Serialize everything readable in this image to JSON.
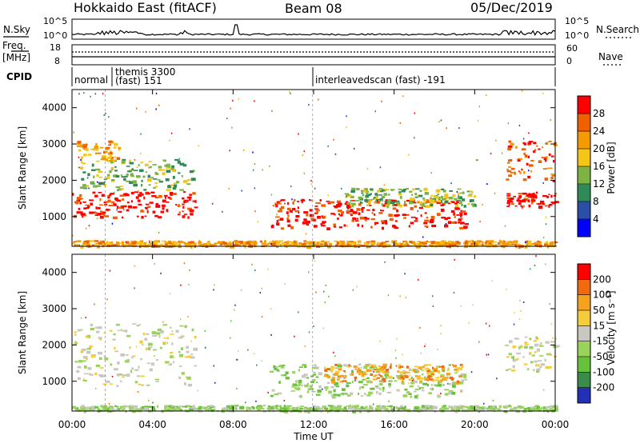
{
  "header": {
    "title": "Hokkaido East (fitACF)",
    "beam": "Beam 08",
    "date": "05/Dec/2019"
  },
  "colors": {
    "power": [
      "#0000ff",
      "#2b4fa8",
      "#2e8b57",
      "#7cb342",
      "#f5c518",
      "#f59a00",
      "#f06000",
      "#ff0000"
    ],
    "velocity": [
      "#2230b8",
      "#3a8c4a",
      "#66c23a",
      "#9ad35a",
      "#c8c8c0",
      "#f5cc3c",
      "#f5a21e",
      "#f06a10",
      "#ff0000"
    ]
  },
  "strip": {
    "nsky_label": "N.Sky",
    "nsky_ticks": [
      "10^5",
      "10^0"
    ],
    "nsearch_label": "N.Search",
    "nsearch_ticks": [
      "10^5",
      "10^0"
    ],
    "freq_label_1": "Freq.",
    "freq_label_2": "[MHz]",
    "freq_ticks": [
      "18",
      "8"
    ],
    "nave_label": "Nave",
    "nave_ticks": [
      "60",
      "0"
    ],
    "cpid_label": "CPID",
    "cpid_segments": [
      {
        "name": "normal"
      },
      {
        "name": "themis 3300",
        "sub": "(fast) 151"
      },
      {
        "name": "interleavedscan (fast) -191"
      }
    ]
  },
  "chart_data": [
    {
      "type": "heatmap",
      "panel": "power",
      "ylabel": "Slant Range [km]",
      "y_ticks": [
        "4000",
        "3000",
        "2000",
        "1000"
      ],
      "colorbar_label": "Power [dB]",
      "colorbar_ticks": [
        "28",
        "24",
        "20",
        "16",
        "12",
        "8",
        "4"
      ],
      "ylim": [
        180,
        4500
      ],
      "regions": [
        {
          "t0": 0.0,
          "t1": 6.2,
          "r0": 1000,
          "r1": 1700,
          "level": 7
        },
        {
          "t0": 0.3,
          "t1": 6.0,
          "r0": 1750,
          "r1": 2600,
          "level": 3
        },
        {
          "t0": 0.2,
          "t1": 2.3,
          "r0": 2600,
          "r1": 3100,
          "level": 5
        },
        {
          "t0": 9.8,
          "t1": 19.5,
          "r0": 700,
          "r1": 1500,
          "level": 7
        },
        {
          "t0": 13.5,
          "t1": 20.0,
          "r0": 1300,
          "r1": 1800,
          "level": 3
        },
        {
          "t0": 21.5,
          "t1": 24.0,
          "r0": 1300,
          "r1": 1700,
          "level": 7
        },
        {
          "t0": 21.5,
          "t1": 24.0,
          "r0": 2000,
          "r1": 3100,
          "level": 6
        },
        {
          "t0": 0.0,
          "t1": 24.0,
          "r0": 200,
          "r1": 350,
          "level": 5
        }
      ]
    },
    {
      "type": "heatmap",
      "panel": "velocity",
      "ylabel": "Slant Range [km]",
      "y_ticks": [
        "4000",
        "3000",
        "2000",
        "1000"
      ],
      "colorbar_label": "Velocity [m s⁻¹]",
      "colorbar_ticks": [
        "200",
        "100",
        "50",
        "15",
        "-15",
        "-50",
        "-100",
        "-200"
      ],
      "x_ticks": [
        "00:00",
        "04:00",
        "08:00",
        "12:00",
        "16:00",
        "20:00",
        "00:00"
      ],
      "xlabel": "Time UT",
      "xlim": [
        0,
        24
      ],
      "ylim": [
        180,
        4500
      ],
      "regions": [
        {
          "t0": 0.0,
          "t1": 6.2,
          "r0": 900,
          "r1": 2600,
          "level": 4
        },
        {
          "t0": 9.8,
          "t1": 19.5,
          "r0": 600,
          "r1": 1500,
          "level": 3
        },
        {
          "t0": 12.5,
          "t1": 19.5,
          "r0": 1000,
          "r1": 1500,
          "level": 6
        },
        {
          "t0": 21.5,
          "t1": 24.0,
          "r0": 1300,
          "r1": 2300,
          "level": 4
        },
        {
          "t0": 0.0,
          "t1": 24.0,
          "r0": 200,
          "r1": 350,
          "level": 3
        }
      ]
    }
  ]
}
